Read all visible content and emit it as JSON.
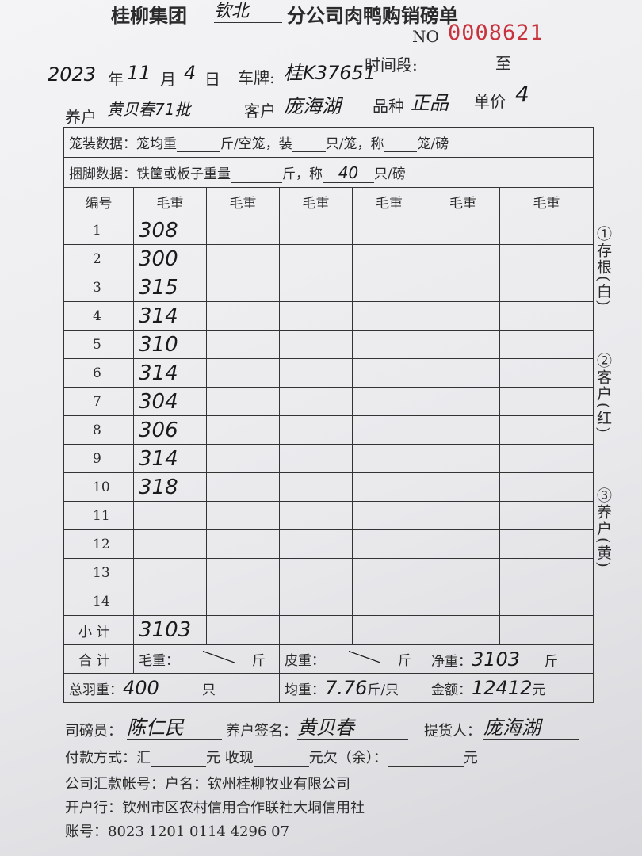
{
  "header": {
    "company": "桂柳集团",
    "branch": "钦北",
    "title": "分公司肉鸭购销磅单",
    "serial_label": "NO",
    "serial": "0008621"
  },
  "info": {
    "year": "2023",
    "year_unit": "年",
    "month": "11",
    "month_unit": "月",
    "day": "4",
    "day_unit": "日",
    "plate_label": "车牌:",
    "plate": "桂K37651",
    "period_label": "时间段:",
    "period_to": "至",
    "farmer_label": "养户",
    "farmer": "黄贝春71批",
    "customer_label": "客户",
    "customer": "庞海湖",
    "variety_label": "品种",
    "variety": "正品",
    "price_label": "单价",
    "price": "4"
  },
  "cage_data": {
    "label": "笼装数据：",
    "text1": "笼均重",
    "unit1": "斤/空笼，装",
    "unit2": "只/笼，称",
    "unit3": "笼/磅"
  },
  "tie_data": {
    "label": "捆脚数据：",
    "text1": "铁筐或板子重量",
    "unit1": "斤，称",
    "count": "40",
    "unit2": "只/磅"
  },
  "table": {
    "headers": [
      "编号",
      "毛重",
      "毛重",
      "毛重",
      "毛重",
      "毛重",
      "毛重"
    ],
    "rows": [
      [
        "1",
        "308"
      ],
      [
        "2",
        "300"
      ],
      [
        "3",
        "315"
      ],
      [
        "4",
        "314"
      ],
      [
        "5",
        "310"
      ],
      [
        "6",
        "314"
      ],
      [
        "7",
        "304"
      ],
      [
        "8",
        "306"
      ],
      [
        "9",
        "314"
      ],
      [
        "10",
        "318"
      ],
      [
        "11"
      ],
      [
        "12"
      ],
      [
        "13"
      ],
      [
        "14"
      ]
    ]
  },
  "subtotal": {
    "label": "小 计",
    "value": "3103"
  },
  "total": {
    "label": "合 计",
    "gross_label": "毛重：",
    "gross_unit": "斤",
    "tare_label": "皮重：",
    "tare_unit": "斤",
    "net_label": "净重：",
    "net": "3103",
    "net_unit": "斤"
  },
  "summary": {
    "count_label": "总羽重：",
    "count": "400",
    "count_unit": "只",
    "avg_label": "均重：",
    "avg": "7.76",
    "avg_unit": "斤/只",
    "amount_label": "金额：",
    "amount": "12412",
    "amount_unit": "元"
  },
  "side_copies": [
    "①存根(白)",
    "②客户(红)",
    "③养户(黄)"
  ],
  "footer": {
    "weigher_label": "司磅员：",
    "weigher": "陈仁民",
    "farmer_sign_label": "养户签名：",
    "farmer_sign": "黄贝春",
    "receiver_label": "提货人：",
    "receiver": "庞海湖",
    "payment": [
      "付款方式：汇",
      "元 收现",
      "元欠（余）：",
      "元"
    ],
    "account_line": "公司汇款帐号：户名：钦州桂柳牧业有限公司",
    "bank_line": "开户行：钦州市区农村信用合作联社大垌信用社",
    "account_no": "账号：8023 1201 0114 4296 07"
  }
}
